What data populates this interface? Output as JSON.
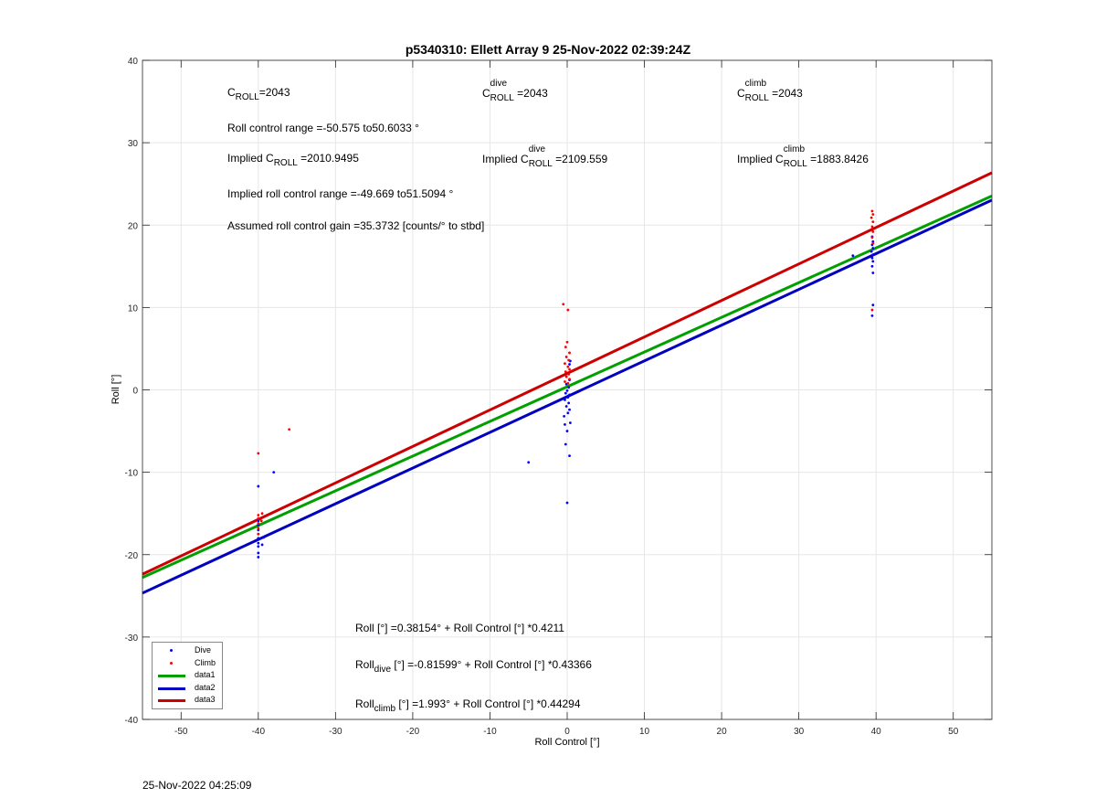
{
  "title": "p5340310: Ellett Array 9 25-Nov-2022 02:39:24Z",
  "footer_timestamp": "25-Nov-2022 04:25:09",
  "annotations": {
    "c_roll": {
      "main": "C",
      "sub": "ROLL",
      "value": "=2043"
    },
    "c_roll_dive": {
      "main": "C",
      "sup": "dive",
      "sub": "ROLL",
      "value": " =2043"
    },
    "c_roll_climb": {
      "main": "C",
      "sup": "climb",
      "sub": "ROLL",
      "value": " =2043"
    },
    "roll_range": "Roll control range =-50.575 to50.6033 °",
    "implied_c_roll": {
      "prefix": "Implied C",
      "sub": "ROLL",
      "value": " =2010.9495"
    },
    "implied_c_roll_dive": {
      "prefix": "Implied C",
      "sup": "dive",
      "sub": "ROLL",
      "value": " =2109.559"
    },
    "implied_c_roll_climb": {
      "prefix": "Implied C",
      "sup": "climb",
      "sub": "ROLL",
      "value": " =1883.8426"
    },
    "implied_range": "Implied roll control range =-49.669 to51.5094 °",
    "gain": "Assumed roll control gain =35.3732 [counts/° to stbd]",
    "eq_all": "Roll [°] =0.38154° + Roll Control [°] *0.4211",
    "eq_dive": {
      "prefix": "Roll",
      "sub": "dive",
      "rest": " [°] =-0.81599° + Roll Control [°] *0.43366"
    },
    "eq_climb": {
      "prefix": "Roll",
      "sub": "climb",
      "rest": " [°] =1.993° + Roll Control [°] *0.44294"
    }
  },
  "legend": [
    {
      "label": "Dive",
      "kind": "dot",
      "color": "#0000ff"
    },
    {
      "label": "Climb",
      "kind": "dot",
      "color": "#ff0000"
    },
    {
      "label": "data1",
      "kind": "line",
      "color": "#00a000"
    },
    {
      "label": "data2",
      "kind": "line",
      "color": "#0000c0"
    },
    {
      "label": "data3",
      "kind": "line",
      "color": "#cc0000"
    }
  ],
  "chart_data": {
    "type": "scatter",
    "xlabel": "Roll Control [°]",
    "ylabel": "Roll [°]",
    "xlim": [
      -55,
      55
    ],
    "ylim": [
      -40,
      40
    ],
    "xticks": [
      -50,
      -40,
      -30,
      -20,
      -10,
      0,
      10,
      20,
      30,
      40,
      50
    ],
    "yticks": [
      -40,
      -30,
      -20,
      -10,
      0,
      10,
      20,
      30,
      40
    ],
    "grid": true,
    "legend_position": "bottom-left",
    "series": [
      {
        "name": "Dive",
        "kind": "points",
        "color": "#0000ff",
        "points": [
          [
            -40,
            -20.3
          ],
          [
            -40,
            -19.8
          ],
          [
            -40,
            -19.0
          ],
          [
            -40,
            -18.6
          ],
          [
            -40,
            -18.0
          ],
          [
            -40,
            -17.5
          ],
          [
            -40,
            -17.0
          ],
          [
            -40,
            -16.4
          ],
          [
            -40,
            -15.9
          ],
          [
            -40,
            -11.7
          ],
          [
            -39.5,
            -18.8
          ],
          [
            -39.3,
            -17.9
          ],
          [
            -38,
            -10.0
          ],
          [
            -5,
            -8.8
          ],
          [
            0,
            -13.7
          ],
          [
            0.3,
            -8.0
          ],
          [
            -0.2,
            -6.6
          ],
          [
            0,
            -5.0
          ],
          [
            -0.3,
            -4.2
          ],
          [
            0.4,
            -4.0
          ],
          [
            -0.4,
            -3.2
          ],
          [
            0.1,
            -2.8
          ],
          [
            0.3,
            -2.4
          ],
          [
            -0.1,
            -2.0
          ],
          [
            0.2,
            -1.6
          ],
          [
            -0.3,
            -1.2
          ],
          [
            0.1,
            -0.9
          ],
          [
            0.3,
            -0.6
          ],
          [
            -0.2,
            -0.4
          ],
          [
            0.0,
            -0.1
          ],
          [
            0.2,
            0.3
          ],
          [
            -0.1,
            0.7
          ],
          [
            0.3,
            1.2
          ],
          [
            0.3,
            3.1
          ],
          [
            0.4,
            3.5
          ],
          [
            37,
            16.3
          ],
          [
            39.5,
            9.0
          ],
          [
            39.6,
            10.3
          ],
          [
            39.6,
            14.2
          ],
          [
            39.5,
            15.0
          ],
          [
            39.6,
            15.6
          ],
          [
            39.5,
            16.0
          ],
          [
            39.6,
            16.4
          ],
          [
            39.4,
            16.8
          ],
          [
            39.6,
            17.2
          ],
          [
            39.5,
            17.6
          ],
          [
            39.6,
            18.0
          ],
          [
            39.5,
            18.6
          ]
        ]
      },
      {
        "name": "Climb",
        "kind": "points",
        "color": "#ff0000",
        "points": [
          [
            -40,
            -7.7
          ],
          [
            -40,
            -17.5
          ],
          [
            -40,
            -16.8
          ],
          [
            -40,
            -16.2
          ],
          [
            -40,
            -15.6
          ],
          [
            -40,
            -15.2
          ],
          [
            -39.6,
            -15.9
          ],
          [
            -39.5,
            -15.0
          ],
          [
            -36,
            -4.8
          ],
          [
            -0.5,
            10.4
          ],
          [
            0.1,
            9.7
          ],
          [
            0,
            5.8
          ],
          [
            -0.2,
            5.2
          ],
          [
            0.3,
            4.5
          ],
          [
            -0.1,
            4.0
          ],
          [
            0.2,
            3.6
          ],
          [
            -0.3,
            3.2
          ],
          [
            0.1,
            2.8
          ],
          [
            0.3,
            2.5
          ],
          [
            -0.2,
            2.2
          ],
          [
            0.2,
            1.9
          ],
          [
            -0.1,
            1.6
          ],
          [
            0.3,
            1.3
          ],
          [
            -0.3,
            1.0
          ],
          [
            0.1,
            0.8
          ],
          [
            39.5,
            9.7
          ],
          [
            39.6,
            17.8
          ],
          [
            39.5,
            18.5
          ],
          [
            39.6,
            19.2
          ],
          [
            39.5,
            19.8
          ],
          [
            39.6,
            20.4
          ],
          [
            39.4,
            20.9
          ],
          [
            39.6,
            21.3
          ],
          [
            39.5,
            21.7
          ]
        ]
      },
      {
        "name": "data1",
        "kind": "line",
        "color": "#00a000",
        "intercept": 0.38154,
        "slope": 0.4211
      },
      {
        "name": "data2",
        "kind": "line",
        "color": "#0000c0",
        "intercept": -0.81599,
        "slope": 0.43366
      },
      {
        "name": "data3",
        "kind": "line",
        "color": "#cc0000",
        "intercept": 1.993,
        "slope": 0.44294
      }
    ]
  }
}
